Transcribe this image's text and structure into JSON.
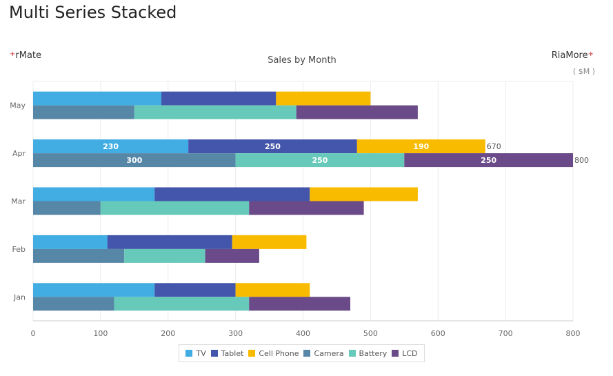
{
  "page": {
    "title": "Multi Series Stacked"
  },
  "brand": {
    "left": "rMate",
    "right": "RiaMore",
    "plus": "+"
  },
  "unit_label": "( $M )",
  "chart_data": {
    "type": "bar",
    "orientation": "horizontal",
    "stacked": true,
    "title": "Sales by Month",
    "categories": [
      "Jan",
      "Feb",
      "Mar",
      "Apr",
      "May"
    ],
    "xlim": [
      0,
      800
    ],
    "xticks": [
      0,
      100,
      200,
      300,
      400,
      500,
      600,
      700,
      800
    ],
    "grid": true,
    "legend_position": "bottom",
    "stacks": [
      {
        "position": "top",
        "series": [
          {
            "name": "TV",
            "color": "#41ade2",
            "values": [
              180,
              110,
              180,
              230,
              190
            ]
          },
          {
            "name": "Tablet",
            "color": "#4356ab",
            "values": [
              120,
              185,
              230,
              250,
              170
            ]
          },
          {
            "name": "Cell Phone",
            "color": "#f9bb00",
            "values": [
              110,
              110,
              160,
              190,
              140
            ]
          }
        ]
      },
      {
        "position": "bottom",
        "series": [
          {
            "name": "Camera",
            "color": "#5787a7",
            "values": [
              120,
              135,
              100,
              300,
              150
            ]
          },
          {
            "name": "Battery",
            "color": "#67c9b9",
            "values": [
              200,
              120,
              220,
              250,
              240
            ]
          },
          {
            "name": "LCD",
            "color": "#6a4a88",
            "values": [
              150,
              80,
              170,
              250,
              180
            ]
          }
        ]
      }
    ],
    "data_labels_category": "Apr"
  }
}
